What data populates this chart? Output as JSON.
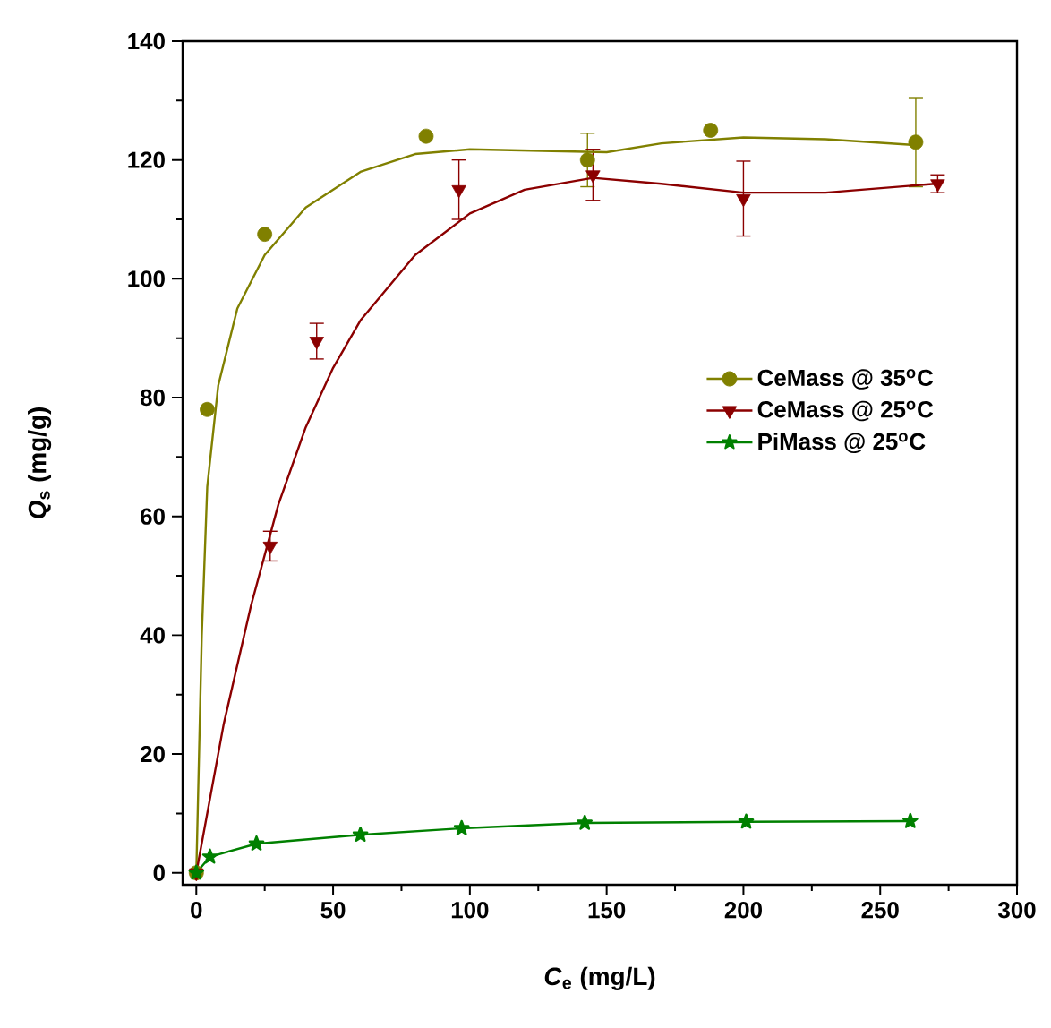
{
  "chart_data": {
    "type": "scatter",
    "xlabel": "*C*$_{e}$ (mg/L)",
    "ylabel": "*Q*$_{s}$ (mg/g)",
    "xlim": [
      -5,
      300
    ],
    "ylim": [
      -2,
      140
    ],
    "xticks": [
      0,
      50,
      100,
      150,
      200,
      250,
      300
    ],
    "yticks": [
      0,
      20,
      40,
      60,
      80,
      100,
      120,
      140
    ],
    "grid": false,
    "legend": "right",
    "series": [
      {
        "name": "CeMass @ 35$^{o}$C",
        "marker": "circle",
        "color": "#808000",
        "x": [
          0,
          4,
          25,
          84,
          143,
          188,
          263
        ],
        "values": [
          0,
          78,
          107.5,
          124,
          120,
          125,
          123
        ],
        "errors": [
          null,
          null,
          null,
          null,
          4.5,
          null,
          7.5
        ]
      },
      {
        "name": "CeMass @ 25$^{o}$C",
        "marker": "triangle",
        "color": "#8b0000",
        "x": [
          0,
          27,
          44,
          96,
          145,
          200,
          271
        ],
        "values": [
          0,
          55,
          89.5,
          115,
          117.5,
          113.5,
          116
        ],
        "errors": [
          null,
          2.5,
          3,
          5,
          4.3,
          6.3,
          1.5
        ]
      },
      {
        "name": "PiMass @ 25$^{o}$C",
        "type": "line",
        "marker": "star",
        "color": "#008000",
        "x": [
          0,
          5,
          22,
          60,
          97,
          142,
          201,
          261
        ],
        "values": [
          0,
          2.7,
          4.9,
          6.4,
          7.5,
          8.4,
          8.6,
          8.7
        ]
      },
      {
        "type": "line",
        "marker": "none",
        "color": "#808000",
        "x": [
          0,
          2,
          4,
          8,
          15,
          25,
          40,
          60,
          80,
          100,
          130,
          150,
          170,
          200,
          230,
          263
        ],
        "values": [
          0,
          40,
          65,
          82,
          95,
          104,
          112,
          118,
          121,
          121.8,
          121.5,
          121.3,
          122.8,
          123.8,
          123.5,
          122.5
        ]
      },
      {
        "type": "line",
        "marker": "none",
        "color": "#8b0000",
        "x": [
          0,
          10,
          20,
          30,
          40,
          50,
          60,
          80,
          100,
          120,
          145,
          170,
          200,
          230,
          270
        ],
        "values": [
          0,
          25,
          45,
          62,
          75,
          85,
          93,
          104,
          111,
          115,
          117,
          116,
          114.5,
          114.5,
          116
        ]
      }
    ]
  }
}
